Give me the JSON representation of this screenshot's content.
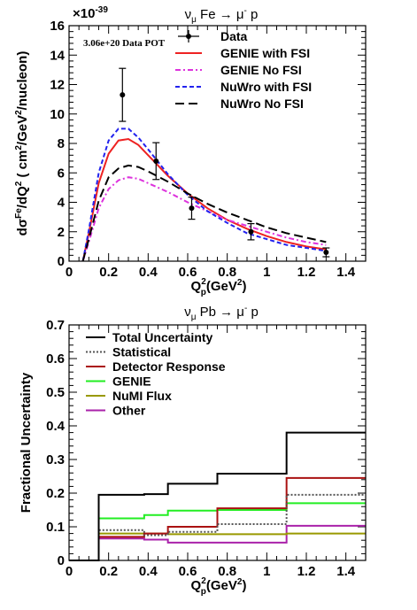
{
  "chart_data": [
    {
      "type": "line",
      "title": "ν_μ Fe → μ⁻ p",
      "title_parts": {
        "nu": "ν",
        "nu_sub": "μ",
        "target": " Fe → μ",
        "mu_sup": "-",
        "end": " p"
      },
      "annotation": "3.06e+20 Data POT",
      "exponent": "×10⁻³⁹",
      "exponent_parts": {
        "base": "×10",
        "sup": "-39"
      },
      "xlabel_parts": {
        "q": "Q",
        "q_sup": "2",
        "q_sub": "p",
        "unit": "(GeV",
        "unit_sup": "2",
        "close": ")"
      },
      "ylabel_parts": {
        "a": "dσ",
        "a_sup": "Fe",
        "b": "/dQ",
        "b_sup": "2",
        "c": " ( cm",
        "c_sup": "2",
        "d": "/GeV",
        "d_sup": "2",
        "e": "/nucleon)"
      },
      "xlim": [
        0,
        1.5
      ],
      "ylim": [
        0,
        16
      ],
      "x_ticks": [
        0,
        0.2,
        0.4,
        0.6,
        0.8,
        1.0,
        1.2,
        1.4
      ],
      "x_tick_labels": [
        "0",
        "0.2",
        "0.4",
        "0.6",
        "0.8",
        "1",
        "1.2",
        "1.4"
      ],
      "y_ticks": [
        0,
        2,
        4,
        6,
        8,
        10,
        12,
        14,
        16
      ],
      "y_tick_labels": [
        "0",
        "2",
        "4",
        "6",
        "8",
        "10",
        "12",
        "14",
        "16"
      ],
      "legend_position": "top-right",
      "data_points": {
        "name": "Data",
        "x": [
          0.27,
          0.44,
          0.62,
          0.92,
          1.3
        ],
        "y": [
          11.3,
          6.8,
          3.6,
          2.0,
          0.6
        ],
        "yerr": [
          1.8,
          1.25,
          0.75,
          0.55,
          0.3
        ]
      },
      "series": [
        {
          "name": "GENIE with FSI",
          "color": "#ee2222",
          "dash": "",
          "x": [
            0.07,
            0.1,
            0.15,
            0.2,
            0.25,
            0.3,
            0.35,
            0.4,
            0.5,
            0.6,
            0.7,
            0.8,
            0.9,
            1.0,
            1.1,
            1.2,
            1.3
          ],
          "y": [
            0.0,
            1.9,
            5.3,
            7.3,
            8.2,
            8.3,
            7.9,
            7.2,
            5.8,
            4.6,
            3.6,
            2.8,
            2.2,
            1.7,
            1.3,
            1.0,
            0.8
          ]
        },
        {
          "name": "GENIE No FSI",
          "color": "#dd33dd",
          "dash": "6,3,2,3",
          "x": [
            0.07,
            0.1,
            0.15,
            0.2,
            0.25,
            0.3,
            0.35,
            0.4,
            0.5,
            0.6,
            0.7,
            0.8,
            0.9,
            1.0,
            1.1,
            1.2,
            1.3
          ],
          "y": [
            0.0,
            1.3,
            3.6,
            4.9,
            5.5,
            5.7,
            5.6,
            5.3,
            4.7,
            4.0,
            3.4,
            2.8,
            2.4,
            2.0,
            1.6,
            1.3,
            1.1
          ]
        },
        {
          "name": "NuWro with FSI",
          "color": "#2222ee",
          "dash": "5,3",
          "x": [
            0.07,
            0.1,
            0.15,
            0.2,
            0.25,
            0.3,
            0.35,
            0.4,
            0.5,
            0.6,
            0.7,
            0.8,
            0.9,
            1.0,
            1.1,
            1.2,
            1.3
          ],
          "y": [
            0.0,
            2.1,
            6.0,
            8.2,
            9.0,
            9.0,
            8.4,
            7.6,
            5.9,
            4.5,
            3.4,
            2.6,
            1.9,
            1.5,
            1.1,
            0.9,
            0.7
          ]
        },
        {
          "name": "NuWro No FSI",
          "color": "#000000",
          "dash": "10,5",
          "x": [
            0.07,
            0.1,
            0.15,
            0.2,
            0.25,
            0.3,
            0.35,
            0.4,
            0.5,
            0.6,
            0.7,
            0.8,
            0.9,
            1.0,
            1.1,
            1.2,
            1.3
          ],
          "y": [
            0.0,
            1.5,
            4.1,
            5.7,
            6.3,
            6.5,
            6.4,
            6.1,
            5.4,
            4.6,
            3.9,
            3.3,
            2.8,
            2.3,
            1.9,
            1.6,
            1.3
          ]
        }
      ]
    },
    {
      "type": "line",
      "title": "ν_μ Pb → μ⁻ p",
      "title_parts": {
        "nu": "ν",
        "nu_sub": "μ",
        "target": " Pb → μ",
        "mu_sup": "-",
        "end": " p"
      },
      "xlabel_parts": {
        "q": "Q",
        "q_sup": "2",
        "q_sub": "p",
        "unit": "(GeV",
        "unit_sup": "2",
        "close": ")"
      },
      "ylabel": "Fractional Uncertainty",
      "xlim": [
        0,
        1.5
      ],
      "ylim": [
        0,
        0.7
      ],
      "x_ticks": [
        0,
        0.2,
        0.4,
        0.6,
        0.8,
        1.0,
        1.2,
        1.4
      ],
      "x_tick_labels": [
        "0",
        "0.2",
        "0.4",
        "0.6",
        "0.8",
        "1",
        "1.2",
        "1.4"
      ],
      "y_ticks": [
        0,
        0.1,
        0.2,
        0.3,
        0.4,
        0.5,
        0.6,
        0.7
      ],
      "y_tick_labels": [
        "0",
        "0.1",
        "0.2",
        "0.3",
        "0.4",
        "0.5",
        "0.6",
        "0.7"
      ],
      "legend_position": "top-left",
      "bin_edges": [
        0,
        0.15,
        0.38,
        0.5,
        0.75,
        1.1,
        1.5
      ],
      "series": [
        {
          "name": "Total Uncertainty",
          "color": "#000000",
          "dash": "",
          "values": [
            0,
            0.195,
            0.197,
            0.228,
            0.258,
            0.38
          ]
        },
        {
          "name": "Statistical",
          "color": "#555555",
          "dash": "2,2",
          "values": [
            0,
            0.09,
            0.075,
            0.085,
            0.108,
            0.195
          ]
        },
        {
          "name": "Detector Response",
          "color": "#aa1111",
          "dash": "",
          "values": [
            0,
            0.07,
            0.08,
            0.1,
            0.155,
            0.245
          ]
        },
        {
          "name": "GENIE",
          "color": "#22ee22",
          "dash": "",
          "values": [
            0,
            0.125,
            0.135,
            0.148,
            0.15,
            0.17
          ]
        },
        {
          "name": "NuMI Flux",
          "color": "#999900",
          "dash": "",
          "values": [
            0,
            0.08,
            0.08,
            0.078,
            0.078,
            0.08
          ]
        },
        {
          "name": "Other",
          "color": "#aa22aa",
          "dash": "",
          "values": [
            0,
            0.065,
            0.062,
            0.053,
            0.053,
            0.103
          ]
        }
      ]
    }
  ]
}
